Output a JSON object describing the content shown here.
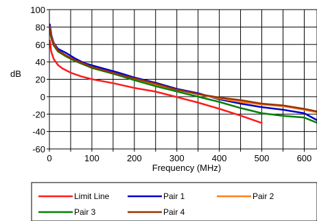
{
  "chart_data": {
    "type": "line",
    "xlabel": "Frequency (MHz)",
    "ylabel": "dB",
    "xlim": [
      0,
      630
    ],
    "ylim": [
      -60,
      100
    ],
    "xticks": [
      "0",
      "100",
      "200",
      "300",
      "400",
      "500",
      "600"
    ],
    "yticks": [
      "100",
      "80",
      "60",
      "40",
      "20",
      "0",
      "-20",
      "-40",
      "-60"
    ],
    "grid": true,
    "legend_position": "bottom",
    "series": [
      {
        "name": "Limit Line",
        "color": "#ff1a1a",
        "x": [
          1,
          4,
          10,
          20,
          30,
          50,
          75,
          100,
          150,
          200,
          250,
          300,
          350,
          400,
          450,
          500
        ],
        "y": [
          64.3,
          52.2,
          43.3,
          36.5,
          32.6,
          27.6,
          23.3,
          20.1,
          15.5,
          10.1,
          5.8,
          -0.4,
          -6.8,
          -13.9,
          -21.7,
          -30.2
        ]
      },
      {
        "name": "Pair 1",
        "color": "#0000cc",
        "x": [
          1,
          5,
          10,
          20,
          40,
          60,
          80,
          100,
          130,
          160,
          200,
          250,
          300,
          350,
          400,
          450,
          500,
          550,
          600,
          630
        ],
        "y": [
          83,
          70,
          62,
          55,
          50,
          44,
          39,
          36,
          32,
          28,
          22,
          16,
          9,
          4,
          -3,
          -8,
          -12,
          -15,
          -19,
          -27
        ]
      },
      {
        "name": "Pair 2",
        "color": "#ff7f1a",
        "x": [
          1,
          5,
          10,
          20,
          40,
          60,
          80,
          100,
          130,
          160,
          200,
          250,
          300,
          350,
          400,
          450,
          500,
          550,
          600,
          630
        ],
        "y": [
          80,
          68,
          61,
          53,
          47,
          42,
          38,
          34,
          30,
          26,
          20,
          14,
          8,
          3,
          -2,
          -6,
          -9,
          -11,
          -15,
          -18
        ]
      },
      {
        "name": "Pair 3",
        "color": "#008000",
        "x": [
          1,
          5,
          10,
          20,
          40,
          60,
          80,
          100,
          130,
          160,
          200,
          250,
          300,
          350,
          400,
          450,
          500,
          550,
          600,
          630
        ],
        "y": [
          76,
          66,
          59,
          52,
          46,
          41,
          37,
          33,
          29,
          25,
          19,
          12,
          6,
          0,
          -6,
          -13,
          -19,
          -22,
          -24,
          -30
        ]
      },
      {
        "name": "Pair 4",
        "color": "#993300",
        "x": [
          1,
          5,
          10,
          20,
          40,
          60,
          80,
          100,
          130,
          160,
          200,
          250,
          300,
          350,
          400,
          450,
          500,
          550,
          600,
          630
        ],
        "y": [
          79,
          67,
          60,
          53,
          47,
          42,
          38,
          34,
          30,
          26,
          21,
          15,
          8,
          3,
          -1,
          -4,
          -8,
          -10,
          -14,
          -17
        ]
      }
    ]
  }
}
